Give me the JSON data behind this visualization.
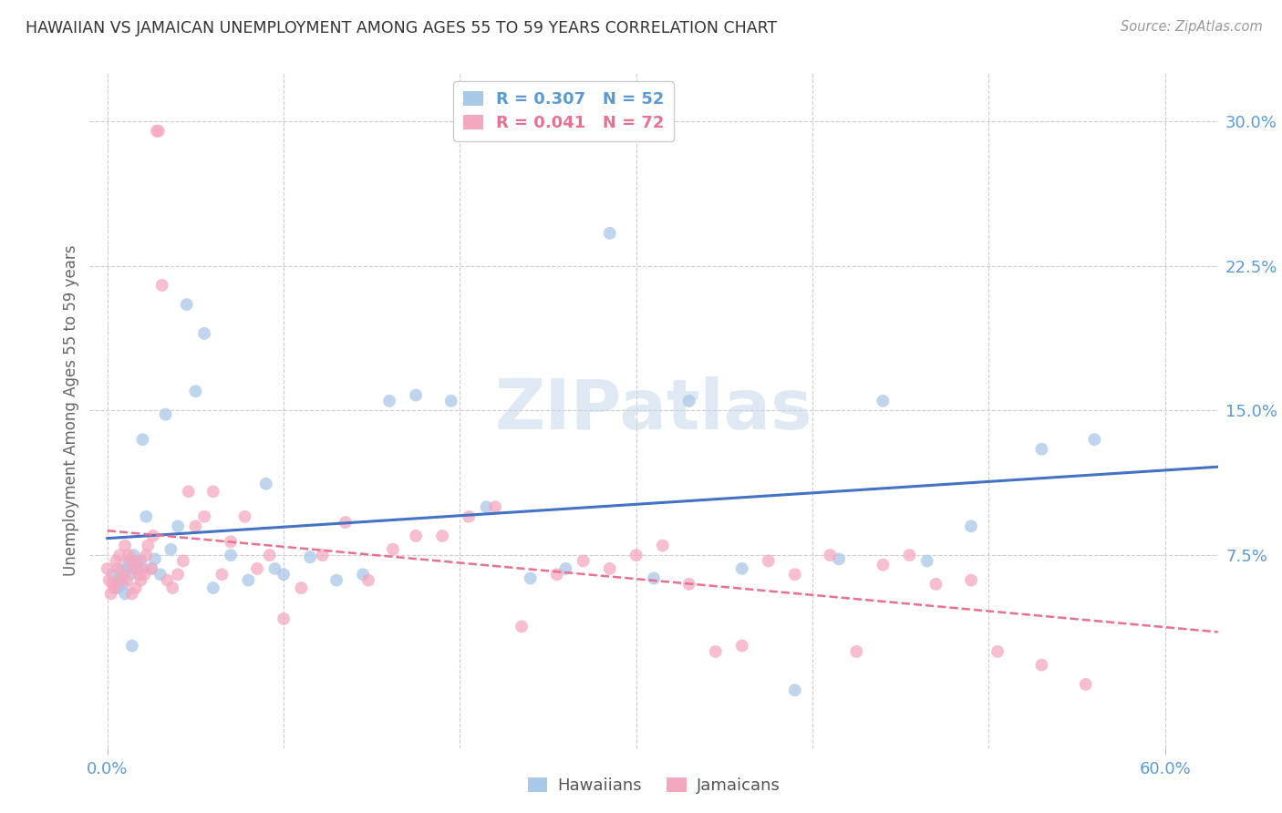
{
  "title": "HAWAIIAN VS JAMAICAN UNEMPLOYMENT AMONG AGES 55 TO 59 YEARS CORRELATION CHART",
  "source": "Source: ZipAtlas.com",
  "ylabel": "Unemployment Among Ages 55 to 59 years",
  "watermark": "ZIPatlas",
  "xlim": [
    -0.01,
    0.63
  ],
  "ylim": [
    -0.025,
    0.325
  ],
  "ytick_vals": [
    0.075,
    0.15,
    0.225,
    0.3
  ],
  "ytick_labels": [
    "7.5%",
    "15.0%",
    "22.5%",
    "30.0%"
  ],
  "xtick_vals": [
    0.0,
    0.6
  ],
  "xtick_labels": [
    "0.0%",
    "60.0%"
  ],
  "grid_xticks": [
    0.0,
    0.1,
    0.2,
    0.3,
    0.4,
    0.5,
    0.6
  ],
  "hawaiians_color": "#a8c8e8",
  "jamaicans_color": "#f4a8c0",
  "hawaiians_line_color": "#4472c4",
  "jamaicans_line_color": "#e87090",
  "background_color": "#ffffff",
  "grid_color": "#cccccc",
  "title_color": "#333333",
  "axis_label_color": "#666666",
  "tick_color": "#5b9bd5",
  "R_hawaiians": 0.307,
  "N_hawaiians": 52,
  "R_jamaicans": 0.041,
  "N_jamaicans": 72,
  "hawaiians_x": [
    0.003,
    0.005,
    0.006,
    0.007,
    0.008,
    0.009,
    0.01,
    0.011,
    0.012,
    0.013,
    0.014,
    0.015,
    0.016,
    0.018,
    0.019,
    0.02,
    0.022,
    0.025,
    0.027,
    0.03,
    0.033,
    0.036,
    0.04,
    0.045,
    0.05,
    0.055,
    0.06,
    0.07,
    0.08,
    0.09,
    0.095,
    0.1,
    0.115,
    0.13,
    0.145,
    0.16,
    0.175,
    0.195,
    0.215,
    0.24,
    0.26,
    0.285,
    0.31,
    0.33,
    0.36,
    0.39,
    0.415,
    0.44,
    0.465,
    0.49,
    0.53,
    0.56
  ],
  "hawaiians_y": [
    0.065,
    0.06,
    0.058,
    0.063,
    0.067,
    0.06,
    0.055,
    0.068,
    0.072,
    0.065,
    0.028,
    0.075,
    0.07,
    0.068,
    0.072,
    0.135,
    0.095,
    0.068,
    0.073,
    0.065,
    0.148,
    0.078,
    0.09,
    0.205,
    0.16,
    0.19,
    0.058,
    0.075,
    0.062,
    0.112,
    0.068,
    0.065,
    0.074,
    0.062,
    0.065,
    0.155,
    0.158,
    0.155,
    0.1,
    0.063,
    0.068,
    0.242,
    0.063,
    0.155,
    0.068,
    0.005,
    0.073,
    0.155,
    0.072,
    0.09,
    0.13,
    0.135
  ],
  "jamaicans_x": [
    0.0,
    0.001,
    0.002,
    0.003,
    0.004,
    0.005,
    0.006,
    0.007,
    0.008,
    0.009,
    0.01,
    0.011,
    0.012,
    0.013,
    0.014,
    0.015,
    0.016,
    0.017,
    0.018,
    0.019,
    0.02,
    0.021,
    0.022,
    0.023,
    0.025,
    0.026,
    0.028,
    0.029,
    0.031,
    0.034,
    0.037,
    0.04,
    0.043,
    0.046,
    0.05,
    0.055,
    0.06,
    0.065,
    0.07,
    0.078,
    0.085,
    0.092,
    0.1,
    0.11,
    0.122,
    0.135,
    0.148,
    0.162,
    0.175,
    0.19,
    0.205,
    0.22,
    0.235,
    0.255,
    0.27,
    0.285,
    0.3,
    0.315,
    0.33,
    0.345,
    0.36,
    0.375,
    0.39,
    0.41,
    0.425,
    0.44,
    0.455,
    0.47,
    0.49,
    0.505,
    0.53,
    0.555
  ],
  "jamaicans_y": [
    0.068,
    0.062,
    0.055,
    0.06,
    0.058,
    0.072,
    0.068,
    0.075,
    0.062,
    0.065,
    0.08,
    0.062,
    0.075,
    0.072,
    0.055,
    0.068,
    0.058,
    0.072,
    0.065,
    0.062,
    0.068,
    0.065,
    0.075,
    0.08,
    0.068,
    0.085,
    0.295,
    0.295,
    0.215,
    0.062,
    0.058,
    0.065,
    0.072,
    0.108,
    0.09,
    0.095,
    0.108,
    0.065,
    0.082,
    0.095,
    0.068,
    0.075,
    0.042,
    0.058,
    0.075,
    0.092,
    0.062,
    0.078,
    0.085,
    0.085,
    0.095,
    0.1,
    0.038,
    0.065,
    0.072,
    0.068,
    0.075,
    0.08,
    0.06,
    0.025,
    0.028,
    0.072,
    0.065,
    0.075,
    0.025,
    0.07,
    0.075,
    0.06,
    0.062,
    0.025,
    0.018,
    0.008
  ]
}
